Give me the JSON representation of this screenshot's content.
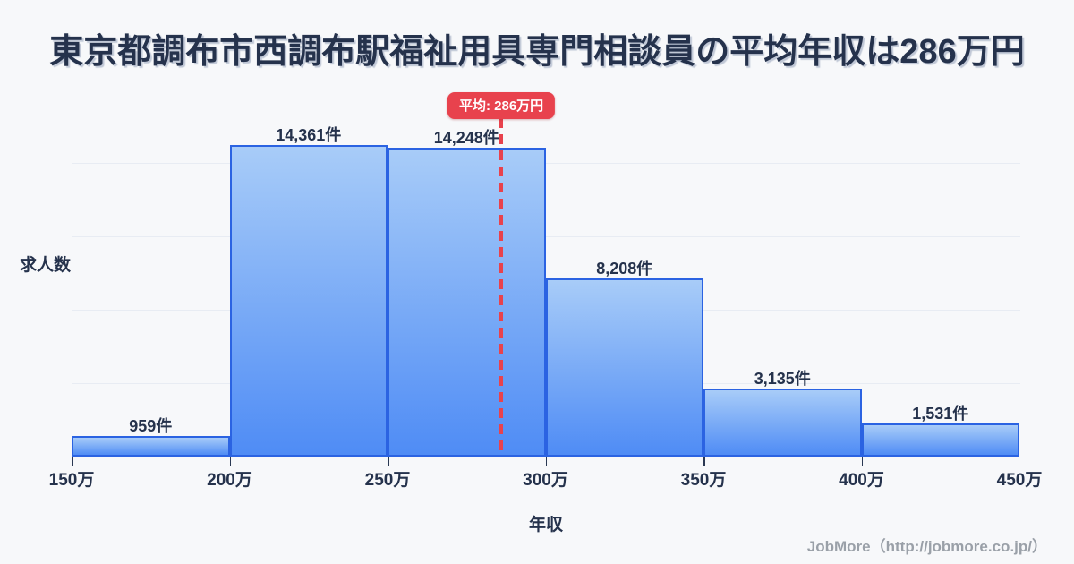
{
  "page": {
    "title": "東京都調布市西調布駅福祉用具専門相談員の平均年収は286万円",
    "footer_credit": "JobMore（http://jobmore.co.jp/）"
  },
  "chart_data": {
    "type": "bar",
    "title": "東京都調布市西調布駅福祉用具専門相談員の平均年収は286万円",
    "xlabel": "年収",
    "ylabel": "求人数",
    "xlim_man_yen": [
      150,
      450
    ],
    "x_tick_labels": [
      "150万",
      "200万",
      "250万",
      "300万",
      "350万",
      "400万",
      "450万"
    ],
    "grid": "horizontal",
    "bins": [
      {
        "range_man_yen": [
          150,
          200
        ],
        "count": 959,
        "label": "959件"
      },
      {
        "range_man_yen": [
          200,
          250
        ],
        "count": 14361,
        "label": "14,361件"
      },
      {
        "range_man_yen": [
          250,
          300
        ],
        "count": 14248,
        "label": "14,248件"
      },
      {
        "range_man_yen": [
          300,
          350
        ],
        "count": 8208,
        "label": "8,208件"
      },
      {
        "range_man_yen": [
          350,
          400
        ],
        "count": 3135,
        "label": "3,135件"
      },
      {
        "range_man_yen": [
          400,
          450
        ],
        "count": 1531,
        "label": "1,531件"
      }
    ],
    "average": {
      "value_man_yen": 286,
      "badge_label": "平均: 286万円"
    },
    "colors": {
      "background": "#f7f8fa",
      "bar_fill_top": "#a8ccf8",
      "bar_fill_bottom": "#4f8cf5",
      "bar_border": "#2b63e2",
      "average_line": "#e8424d",
      "badge_bg": "#e8424d",
      "badge_text": "#ffffff",
      "text": "#25324c",
      "gridline": "#e8ecf3",
      "footer_text": "#9aa0a8"
    }
  }
}
